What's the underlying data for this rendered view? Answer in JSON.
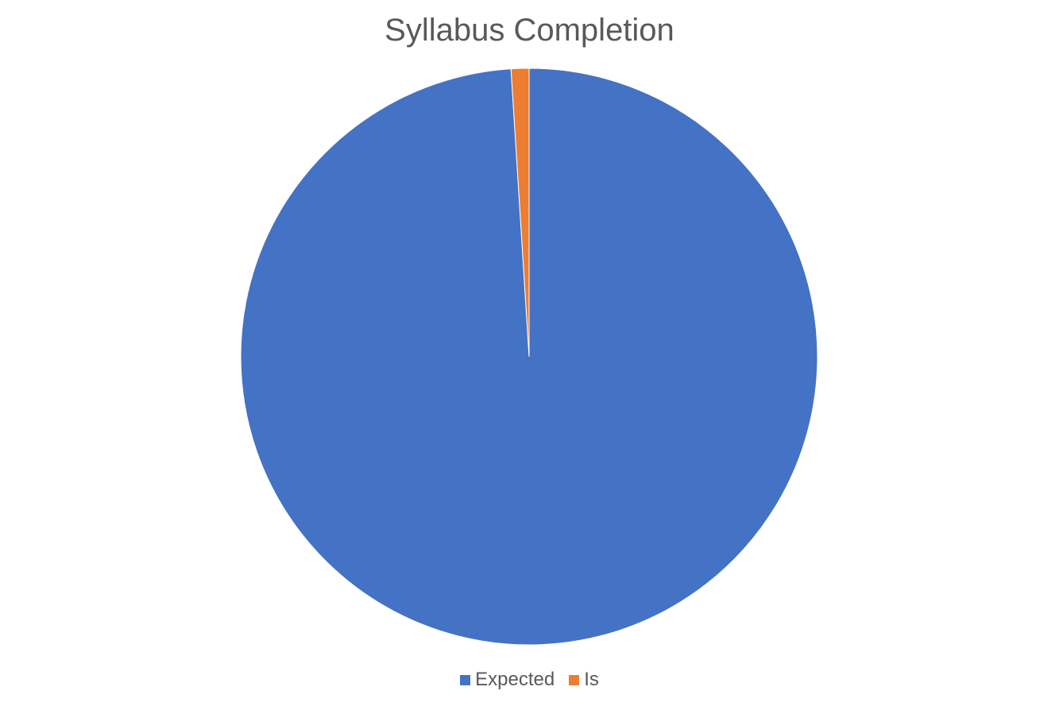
{
  "chart_data": {
    "type": "pie",
    "title": "Syllabus Completion",
    "categories": [
      "Expected",
      "Is"
    ],
    "values": [
      99,
      1
    ],
    "colors": [
      "#4472C4",
      "#ED7D31"
    ],
    "start_angle_deg": 0,
    "direction": "clockwise",
    "legend_position": "bottom"
  }
}
